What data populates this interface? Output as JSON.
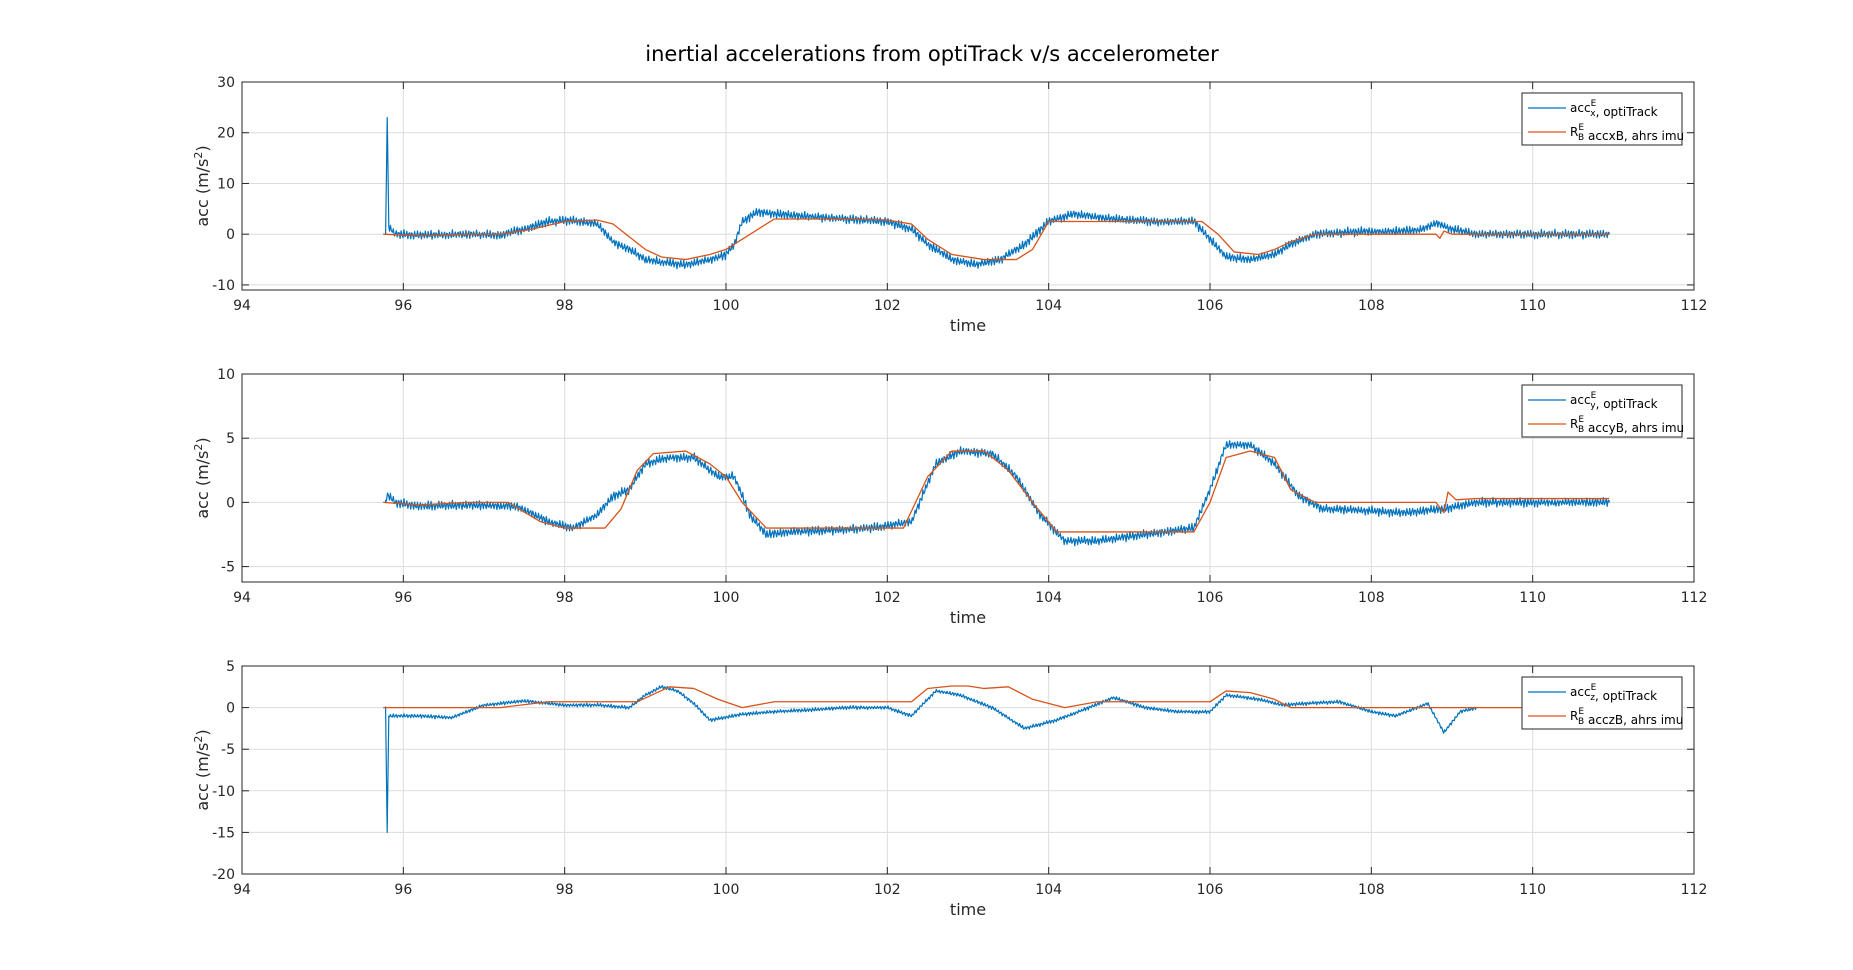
{
  "figure": {
    "title": "inertial accelerations from optiTrack v/s accelerometer"
  },
  "colors": {
    "optitrack": "#0072BD",
    "imu": "#D95319",
    "grid": "#dcdcdc",
    "axes": "#262626"
  },
  "chart_data": [
    {
      "type": "line",
      "xlabel": "time",
      "ylabel": "acc (m/s²)",
      "xlim": [
        94,
        112
      ],
      "ylim": [
        -11,
        30
      ],
      "xticks": [
        94,
        96,
        98,
        100,
        102,
        104,
        106,
        108,
        110,
        112
      ],
      "yticks": [
        -10,
        0,
        10,
        20,
        30
      ],
      "grid": true,
      "legend_position": "top-right",
      "legend": [
        {
          "text": "acc_x^E, optiTrack"
        },
        {
          "text": "R_B^E acc_x^B, ahrs imu"
        }
      ],
      "series": [
        {
          "key": "optitrack",
          "noise": 1.0,
          "x": [
            95.78,
            95.8,
            95.82,
            95.9,
            96.2,
            96.8,
            97.2,
            97.5,
            97.8,
            98.1,
            98.4,
            98.6,
            98.8,
            99.0,
            99.2,
            99.5,
            99.8,
            100.0,
            100.1,
            100.2,
            100.4,
            100.6,
            101.0,
            101.5,
            102.0,
            102.3,
            102.5,
            102.8,
            103.1,
            103.4,
            103.7,
            104.0,
            104.3,
            104.8,
            105.3,
            105.8,
            106.0,
            106.2,
            106.5,
            106.8,
            107.0,
            107.3,
            107.8,
            108.3,
            108.6,
            108.8,
            109.0,
            109.3,
            109.6,
            110.0,
            110.5,
            110.95
          ],
          "y": [
            0,
            23,
            1.5,
            0,
            -0.2,
            0,
            -0.2,
            1.0,
            2.5,
            2.7,
            2.0,
            -1.5,
            -3.0,
            -5.0,
            -5.5,
            -6.0,
            -5.0,
            -4.0,
            -2.0,
            2.5,
            4.5,
            4.0,
            3.5,
            3.0,
            2.5,
            1.0,
            -2.0,
            -5.0,
            -6.0,
            -5.0,
            -2.0,
            2.5,
            4.0,
            3.0,
            2.5,
            2.5,
            -1.0,
            -4.5,
            -5.0,
            -4.0,
            -2.0,
            0,
            0.5,
            0.5,
            0.8,
            2.2,
            1.0,
            0,
            0,
            0,
            0,
            0
          ]
        },
        {
          "key": "imu",
          "noise": 0,
          "x": [
            95.75,
            96.2,
            96.8,
            97.2,
            97.6,
            98.0,
            98.4,
            98.6,
            98.8,
            99.0,
            99.2,
            99.5,
            99.8,
            100.0,
            100.3,
            100.6,
            101.0,
            101.5,
            102.0,
            102.3,
            102.5,
            102.8,
            103.2,
            103.6,
            103.8,
            104.0,
            104.4,
            105.0,
            105.5,
            105.9,
            106.1,
            106.3,
            106.6,
            106.8,
            107.0,
            107.3,
            107.8,
            108.3,
            108.8,
            108.85,
            108.9,
            109.0,
            109.3,
            110.0,
            110.95
          ],
          "y": [
            0,
            -0.3,
            0,
            0,
            1.0,
            2.5,
            2.8,
            2.0,
            -0.5,
            -3.0,
            -4.5,
            -5.0,
            -4.0,
            -3.0,
            0,
            3.0,
            3.0,
            3.0,
            2.8,
            2.0,
            -1.0,
            -4.0,
            -5.0,
            -5.0,
            -3.0,
            2.5,
            2.5,
            2.5,
            2.5,
            2.5,
            0,
            -3.5,
            -4.0,
            -3.0,
            -1.5,
            0,
            0,
            0,
            0,
            -0.8,
            0.6,
            0,
            0,
            0,
            0
          ]
        }
      ]
    },
    {
      "type": "line",
      "xlabel": "time",
      "ylabel": "acc (m/s²)",
      "xlim": [
        94,
        112
      ],
      "ylim": [
        -6.2,
        10
      ],
      "xticks": [
        94,
        96,
        98,
        100,
        102,
        104,
        106,
        108,
        110,
        112
      ],
      "yticks": [
        -5,
        0,
        5,
        10
      ],
      "grid": true,
      "legend_position": "top-right",
      "legend": [
        {
          "text": "acc_y^E, optiTrack"
        },
        {
          "text": "R_B^E acc_y^B, ahrs imu"
        }
      ],
      "series": [
        {
          "key": "optitrack",
          "noise": 0.4,
          "x": [
            95.78,
            95.8,
            95.9,
            96.2,
            96.8,
            97.4,
            97.8,
            98.1,
            98.4,
            98.6,
            98.8,
            99.0,
            99.3,
            99.6,
            99.9,
            100.1,
            100.3,
            100.5,
            100.8,
            101.2,
            101.8,
            102.3,
            102.6,
            102.9,
            103.3,
            103.6,
            103.9,
            104.2,
            104.6,
            105.2,
            105.8,
            106.0,
            106.2,
            106.5,
            106.8,
            107.1,
            107.4,
            107.8,
            108.4,
            108.9,
            109.3,
            110.0,
            110.95
          ],
          "y": [
            0,
            0.6,
            0,
            -0.3,
            -0.2,
            -0.3,
            -1.5,
            -2.0,
            -1.0,
            0.5,
            1.0,
            3.0,
            3.5,
            3.5,
            2.0,
            2.0,
            -1.0,
            -2.5,
            -2.3,
            -2.2,
            -2.0,
            -1.5,
            3.0,
            4.0,
            3.8,
            2.0,
            -1.0,
            -3.0,
            -3.0,
            -2.5,
            -2.0,
            1.0,
            4.5,
            4.5,
            3.0,
            0.5,
            -0.5,
            -0.6,
            -0.8,
            -0.5,
            0,
            0,
            0
          ]
        },
        {
          "key": "imu",
          "noise": 0,
          "x": [
            95.75,
            96.2,
            96.8,
            97.3,
            97.7,
            98.0,
            98.5,
            98.7,
            98.9,
            99.1,
            99.5,
            99.8,
            100.0,
            100.2,
            100.5,
            101.0,
            101.8,
            102.2,
            102.5,
            102.8,
            103.2,
            103.5,
            103.8,
            104.1,
            104.6,
            105.2,
            105.8,
            106.0,
            106.2,
            106.5,
            106.8,
            107.0,
            107.3,
            107.8,
            108.4,
            108.8,
            108.9,
            108.95,
            109.05,
            109.3,
            110.0,
            110.95
          ],
          "y": [
            0,
            -0.2,
            0,
            0,
            -1.5,
            -2.0,
            -2.0,
            -0.5,
            2.5,
            3.8,
            4.0,
            3.0,
            2.0,
            0,
            -2.0,
            -2.0,
            -2.0,
            -2.0,
            2.0,
            4.0,
            4.0,
            2.5,
            0,
            -2.3,
            -2.3,
            -2.3,
            -2.3,
            0,
            3.5,
            4.0,
            3.5,
            1.0,
            0,
            0,
            0,
            0,
            -0.8,
            0.8,
            0.2,
            0.3,
            0.3,
            0.3
          ]
        }
      ]
    },
    {
      "type": "line",
      "xlabel": "time",
      "ylabel": "acc (m/s²)",
      "xlim": [
        94,
        112
      ],
      "ylim": [
        -20,
        5
      ],
      "xticks": [
        94,
        96,
        98,
        100,
        102,
        104,
        106,
        108,
        110,
        112
      ],
      "yticks": [
        -20,
        -15,
        -10,
        -5,
        0,
        5
      ],
      "grid": true,
      "legend_position": "top-right",
      "legend": [
        {
          "text": "acc_z^E, optiTrack"
        },
        {
          "text": "R_B^E acc_z^B, ahrs imu"
        }
      ],
      "series": [
        {
          "key": "optitrack",
          "noise": 0.25,
          "x": [
            95.78,
            95.8,
            95.82,
            95.9,
            96.2,
            96.6,
            97.0,
            97.5,
            98.0,
            98.4,
            98.8,
            99.0,
            99.2,
            99.4,
            99.6,
            99.8,
            100.2,
            100.6,
            101.0,
            101.5,
            102.0,
            102.3,
            102.6,
            102.9,
            103.3,
            103.7,
            104.1,
            104.5,
            104.8,
            105.2,
            105.6,
            106.0,
            106.2,
            106.6,
            106.9,
            107.2,
            107.6,
            108.0,
            108.3,
            108.7,
            108.9,
            109.1,
            109.3
          ],
          "y": [
            0,
            -15.0,
            -1.0,
            -1.0,
            -1.0,
            -1.2,
            0.3,
            0.8,
            0.3,
            0.3,
            0,
            1.5,
            2.5,
            2.0,
            0.5,
            -1.5,
            -0.8,
            -0.5,
            -0.3,
            0,
            0,
            -1.0,
            2.0,
            1.5,
            0,
            -2.5,
            -1.5,
            0,
            1.2,
            0,
            -0.5,
            -0.5,
            1.5,
            1.0,
            0.3,
            0.5,
            0.7,
            -0.5,
            -1.0,
            0.5,
            -3.0,
            -0.5,
            0
          ]
        },
        {
          "key": "imu",
          "noise": 0,
          "x": [
            95.75,
            96.5,
            97.2,
            97.8,
            98.2,
            98.6,
            98.9,
            99.3,
            99.6,
            99.9,
            100.2,
            100.6,
            101.0,
            101.5,
            102.0,
            102.3,
            102.5,
            102.8,
            103.0,
            103.2,
            103.5,
            103.8,
            104.2,
            104.6,
            105.2,
            105.8,
            106.0,
            106.2,
            106.5,
            106.8,
            107.0,
            107.3,
            108.0,
            109.0,
            110.0,
            110.95
          ],
          "y": [
            0,
            0,
            0,
            0.7,
            0.7,
            0.7,
            0.7,
            2.5,
            2.3,
            1.0,
            0,
            0.7,
            0.7,
            0.7,
            0.7,
            0.7,
            2.3,
            2.6,
            2.6,
            2.3,
            2.5,
            1.0,
            0,
            0.7,
            0.7,
            0.7,
            0.7,
            2.0,
            1.8,
            1.0,
            0,
            0,
            0,
            0,
            0,
            0
          ]
        }
      ]
    }
  ]
}
